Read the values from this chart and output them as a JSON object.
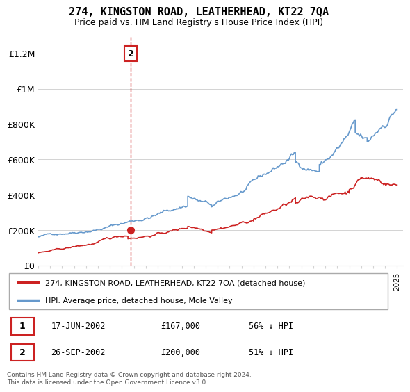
{
  "title": "274, KINGSTON ROAD, LEATHERHEAD, KT22 7QA",
  "subtitle": "Price paid vs. HM Land Registry's House Price Index (HPI)",
  "hpi_color": "#6699cc",
  "price_color": "#cc2222",
  "dot_color": "#cc2222",
  "annotation_box_color": "#cc2222",
  "ylim": [
    0,
    1300000
  ],
  "yticks": [
    0,
    200000,
    400000,
    600000,
    800000,
    1000000,
    1200000
  ],
  "ytick_labels": [
    "£0",
    "£200K",
    "£400K",
    "£600K",
    "£800K",
    "£1M",
    "£1.2M"
  ],
  "legend_label_red": "274, KINGSTON ROAD, LEATHERHEAD, KT22 7QA (detached house)",
  "legend_label_blue": "HPI: Average price, detached house, Mole Valley",
  "transaction1_label": "1",
  "transaction1_date": "17-JUN-2002",
  "transaction1_price": "£167,000",
  "transaction1_hpi": "56% ↓ HPI",
  "transaction1_x": 2002.46,
  "transaction1_y": 167000,
  "transaction2_label": "2",
  "transaction2_date": "26-SEP-2002",
  "transaction2_price": "£200,000",
  "transaction2_hpi": "51% ↓ HPI",
  "transaction2_x": 2002.74,
  "transaction2_y": 200000,
  "footnote": "Contains HM Land Registry data © Crown copyright and database right 2024.\nThis data is licensed under the Open Government Licence v3.0.",
  "xlim_start": 1995.0,
  "xlim_end": 2025.5
}
